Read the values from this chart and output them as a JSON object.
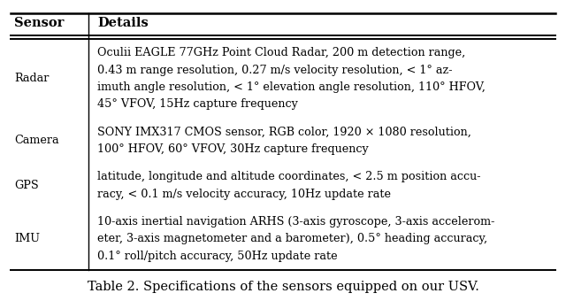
{
  "title": "Table 2. Specifications of the sensors equipped on our USV.",
  "header_col1": "Sensor",
  "header_col2": "Details",
  "rows": [
    {
      "sensor": "Radar",
      "lines": [
        "Oculii EAGLE 77GHz Point Cloud Radar, 200 m detection range,",
        "0.43 m range resolution, 0.27 m/s velocity resolution, < 1° az-",
        "imuth angle resolution, < 1° elevation angle resolution, 110° HFOV,",
        "45° VFOV, 15Hz capture frequency"
      ]
    },
    {
      "sensor": "Camera",
      "lines": [
        "SONY IMX317 CMOS sensor, RGB color, 1920 × 1080 resolution,",
        "100° HFOV, 60° VFOV, 30Hz capture frequency"
      ]
    },
    {
      "sensor": "GPS",
      "lines": [
        "latitude, longitude and altitude coordinates, < 2.5 m position accu-",
        "racy, < 0.1 m/s velocity accuracy, 10Hz update rate"
      ]
    },
    {
      "sensor": "IMU",
      "lines": [
        "10-axis inertial navigation ARHS (3-axis gyroscope, 3-axis accelerom-",
        "eter, 3-axis magnetometer and a barometer), 0.5° heading accuracy,",
        "0.1° roll/pitch accuracy, 50Hz update rate"
      ]
    }
  ],
  "bg_color": "#ffffff",
  "text_color": "#000000",
  "header_fontsize": 10.5,
  "body_fontsize": 9.2,
  "title_fontsize": 10.5,
  "fig_width": 6.4,
  "fig_height": 3.4,
  "dpi": 100
}
